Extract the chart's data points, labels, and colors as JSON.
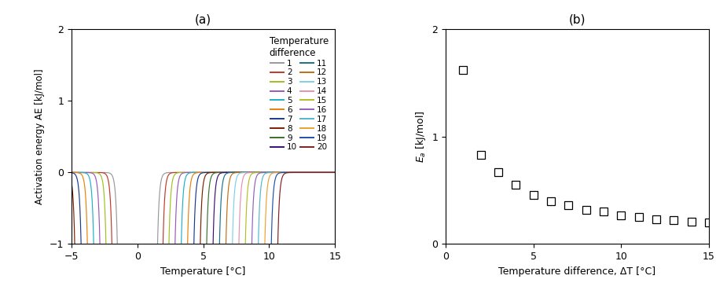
{
  "panel_a_title": "(a)",
  "panel_b_title": "(b)",
  "xlabel_a": "Temperature [°C]",
  "ylabel_a": "Activation energy AE [kJ/mol]",
  "xlabel_b": "Temperature difference, ΔT [°C]",
  "ylabel_b": "E$_a$ [kJ/mol]",
  "legend_title": "Temperature\ndifference",
  "xlim_a": [
    -5,
    15
  ],
  "ylim_a": [
    -1,
    2
  ],
  "xlim_b": [
    0,
    15
  ],
  "ylim_b": [
    0,
    2
  ],
  "colors": [
    "#999999",
    "#c0392b",
    "#a0c020",
    "#9b59b6",
    "#20b0c8",
    "#e8820a",
    "#1a3a8a",
    "#7b2000",
    "#3d7030",
    "#3a1070",
    "#1a7090",
    "#c07010",
    "#80d0e8",
    "#e890b0",
    "#b0c020",
    "#9060c0",
    "#50b8d0",
    "#f0a030",
    "#2050a8",
    "#802020"
  ],
  "labels": [
    "1",
    "2",
    "3",
    "4",
    "5",
    "6",
    "7",
    "8",
    "9",
    "10",
    "11",
    "12",
    "13",
    "14",
    "15",
    "16",
    "17",
    "18",
    "19",
    "20"
  ],
  "b_x": [
    1,
    2,
    3,
    4,
    5,
    6,
    7,
    8,
    9,
    10,
    11,
    12,
    13,
    14,
    15
  ],
  "b_y": [
    1.62,
    0.83,
    0.67,
    0.55,
    0.46,
    0.4,
    0.36,
    0.32,
    0.3,
    0.27,
    0.25,
    0.23,
    0.22,
    0.21,
    0.2
  ]
}
